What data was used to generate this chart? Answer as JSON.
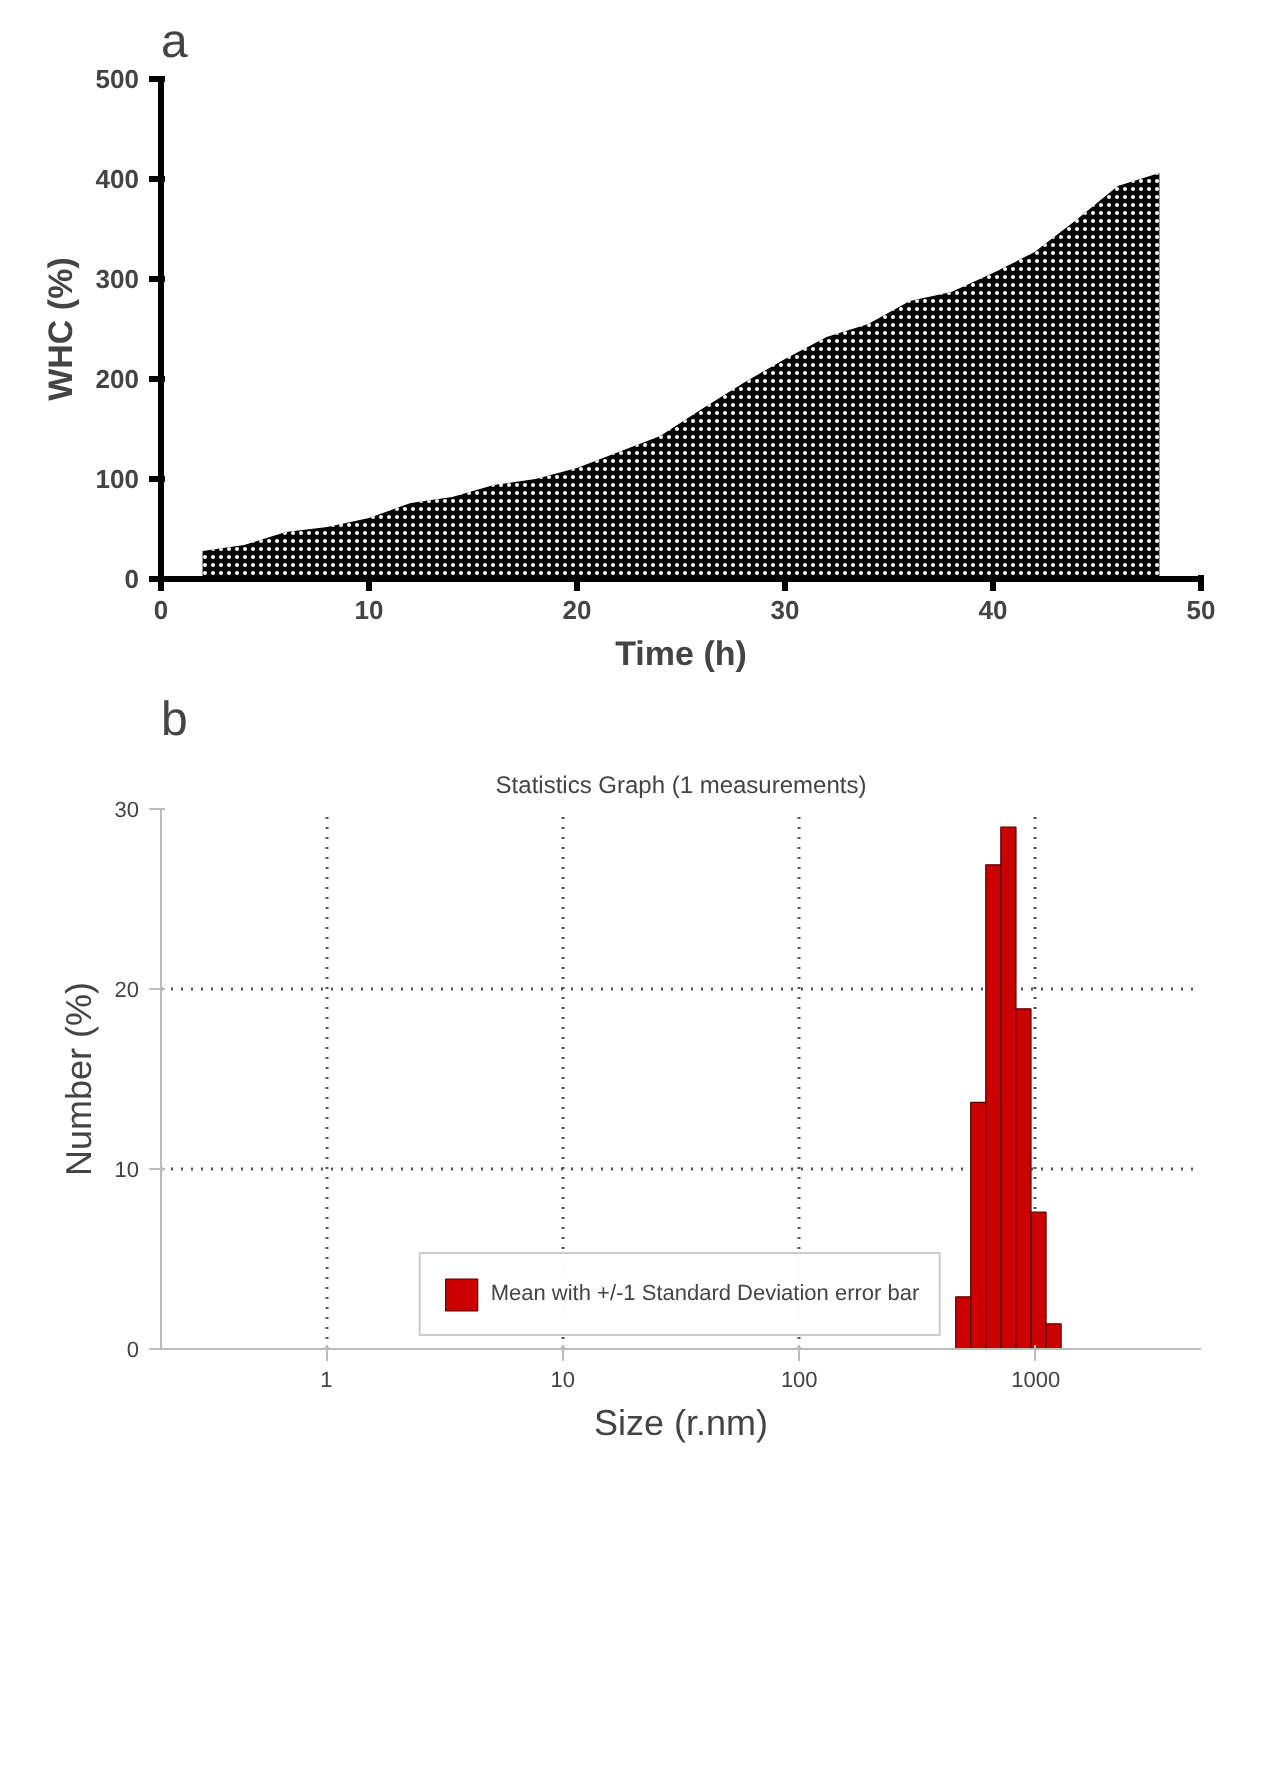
{
  "chart_data": [
    {
      "type": "area",
      "xlabel": "Time (h)",
      "ylabel": "WHC (%)",
      "annotations": [
        "a"
      ],
      "x": [
        2,
        4,
        6,
        8,
        10,
        12,
        14,
        16,
        18,
        20,
        22,
        24,
        26,
        28,
        30,
        32,
        34,
        36,
        38,
        40,
        42,
        44,
        46,
        48
      ],
      "series": [
        {
          "color": "#000000",
          "values": [
            28,
            34,
            47,
            52,
            61,
            76,
            82,
            94,
            100,
            111,
            127,
            143,
            170,
            196,
            220,
            242,
            255,
            278,
            287,
            306,
            327,
            359,
            393,
            406
          ]
        }
      ],
      "xlim": [
        0,
        50
      ],
      "ylim": [
        0,
        500
      ],
      "xticks": [
        0,
        10,
        20,
        30,
        40,
        50
      ],
      "yticks": [
        0,
        100,
        200,
        300,
        400,
        500
      ],
      "grid": false
    },
    {
      "type": "histogram",
      "title": "Statistics Graph (1 measurements)",
      "xlabel": "Size (r.nm)",
      "ylabel": "Number (%)",
      "annotations": [
        "b"
      ],
      "bins": [
        459,
        531,
        615,
        712,
        825,
        955,
        1106,
        1281
      ],
      "series": [
        {
          "name": "Mean with +/-1 Standard Deviation error bar",
          "color": "#cc0000",
          "values": [
            2.9,
            13.7,
            26.9,
            29.0,
            18.9,
            7.6,
            1.4
          ]
        }
      ],
      "xlim": [
        0.2,
        5000
      ],
      "ylim": [
        0,
        30
      ],
      "xticks": [
        1,
        10,
        100,
        1000
      ],
      "yticks": [
        0,
        10,
        20,
        30
      ],
      "log": "x",
      "grid": true,
      "legend": "bottom"
    }
  ]
}
